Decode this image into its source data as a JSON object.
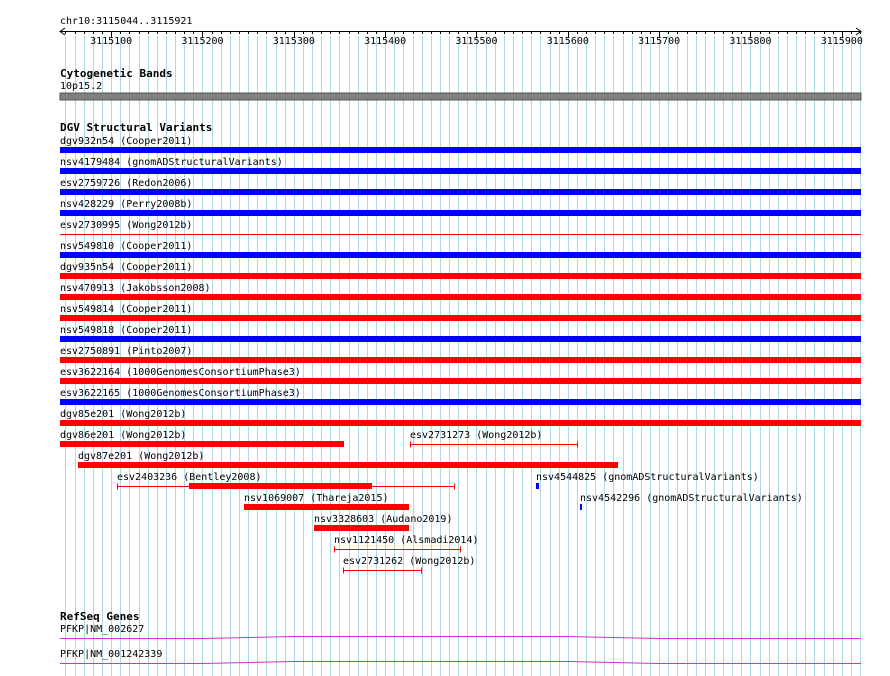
{
  "locus": "chr10:3115044..3115921",
  "ruler": {
    "start": 3115044,
    "end": 3115921,
    "tick_labels": [
      "3115100",
      "3115200",
      "3115300",
      "3115400",
      "3115500",
      "3115600",
      "3115700",
      "3115800",
      "3115900"
    ]
  },
  "colors": {
    "grid": "#add8e6",
    "ideogram": "#808080",
    "gain": "#0000ff",
    "loss": "#ff0000",
    "gene": "#cc33cc"
  },
  "cytoband_track": {
    "title": "Cytogenetic Bands",
    "band": "10p15.2"
  },
  "dgv_track": {
    "title": "DGV Structural Variants",
    "features": [
      {
        "label": "dgv932n54 (Cooper2011)",
        "start": 3115044,
        "end": 3115921,
        "color": "blue",
        "style": "bar",
        "row": 0
      },
      {
        "label": "nsv4179484 (gnomADStructuralVariants)",
        "start": 3115044,
        "end": 3115921,
        "color": "blue",
        "style": "bar",
        "row": 1
      },
      {
        "label": "esv2759726 (Redon2006)",
        "start": 3115044,
        "end": 3115921,
        "color": "blue",
        "style": "bar",
        "row": 2
      },
      {
        "label": "nsv428229 (Perry2008b)",
        "start": 3115044,
        "end": 3115921,
        "color": "blue",
        "style": "bar",
        "row": 3
      },
      {
        "label": "esv2730995 (Wong2012b)",
        "start": 3115044,
        "end": 3115921,
        "color": "red",
        "style": "line",
        "row": 4
      },
      {
        "label": "nsv549810 (Cooper2011)",
        "start": 3115044,
        "end": 3115921,
        "color": "blue",
        "style": "bar",
        "row": 5
      },
      {
        "label": "dgv935n54 (Cooper2011)",
        "start": 3115044,
        "end": 3115921,
        "color": "red",
        "style": "bar",
        "row": 6
      },
      {
        "label": "nsv470913 (Jakobsson2008)",
        "start": 3115044,
        "end": 3115921,
        "color": "red",
        "style": "bar",
        "row": 7
      },
      {
        "label": "nsv549814 (Cooper2011)",
        "start": 3115044,
        "end": 3115921,
        "color": "red",
        "style": "bar",
        "row": 8
      },
      {
        "label": "nsv549818 (Cooper2011)",
        "start": 3115044,
        "end": 3115921,
        "color": "blue",
        "style": "bar",
        "row": 9
      },
      {
        "label": "esv2750891 (Pinto2007)",
        "start": 3115044,
        "end": 3115921,
        "color": "red",
        "style": "bar",
        "row": 10
      },
      {
        "label": "esv3622164 (1000GenomesConsortiumPhase3)",
        "start": 3115044,
        "end": 3115921,
        "color": "red",
        "style": "bar",
        "row": 11
      },
      {
        "label": "esv3622165 (1000GenomesConsortiumPhase3)",
        "start": 3115044,
        "end": 3115921,
        "color": "blue",
        "style": "bar",
        "row": 12
      },
      {
        "label": "dgv85e201 (Wong2012b)",
        "start": 3115044,
        "end": 3115921,
        "color": "red",
        "style": "bar",
        "row": 13
      },
      {
        "label": "dgv86e201 (Wong2012b)",
        "start": 3115044,
        "end": 3115355,
        "color": "red",
        "style": "bar",
        "row": 14
      },
      {
        "label": "esv2731273 (Wong2012b)",
        "start": 3115427,
        "end": 3115611,
        "color": "red",
        "style": "line",
        "row": 14
      },
      {
        "label": "dgv87e201 (Wong2012b)",
        "start": 3115064,
        "end": 3115655,
        "color": "red",
        "style": "bar",
        "row": 15
      },
      {
        "label": "esv2403236 (Bentley2008)",
        "start": 3115106,
        "end": 3115476,
        "color": "red",
        "style": "line",
        "row": 16,
        "thick_start": 3115185,
        "thick_end": 3115386
      },
      {
        "label": "nsv4544825 (gnomADStructuralVariants)",
        "start": 3115565,
        "end": 3115568,
        "color": "blue",
        "style": "bar",
        "row": 16
      },
      {
        "label": "nsv1069007 (Thareja2015)",
        "start": 3115245,
        "end": 3115426,
        "color": "red",
        "style": "bar",
        "row": 17
      },
      {
        "label": "nsv4542296 (gnomADStructuralVariants)",
        "start": 3115613,
        "end": 3115616,
        "color": "blue",
        "style": "bar",
        "row": 17
      },
      {
        "label": "nsv3328603 (Audano2019)",
        "start": 3115322,
        "end": 3115426,
        "color": "red",
        "style": "bar",
        "row": 18
      },
      {
        "label": "nsv1121450 (Alsmadi2014)",
        "start": 3115344,
        "end": 3115483,
        "color": "red",
        "style": "line",
        "row": 19
      },
      {
        "label": "esv2731262 (Wong2012b)",
        "start": 3115354,
        "end": 3115440,
        "color": "red",
        "style": "line",
        "row": 20
      }
    ]
  },
  "refseq_track": {
    "title": "RefSeq Genes",
    "genes": [
      {
        "label": "PFKP|NM_002627"
      },
      {
        "label": "PFKP|NM_001242339"
      }
    ]
  }
}
